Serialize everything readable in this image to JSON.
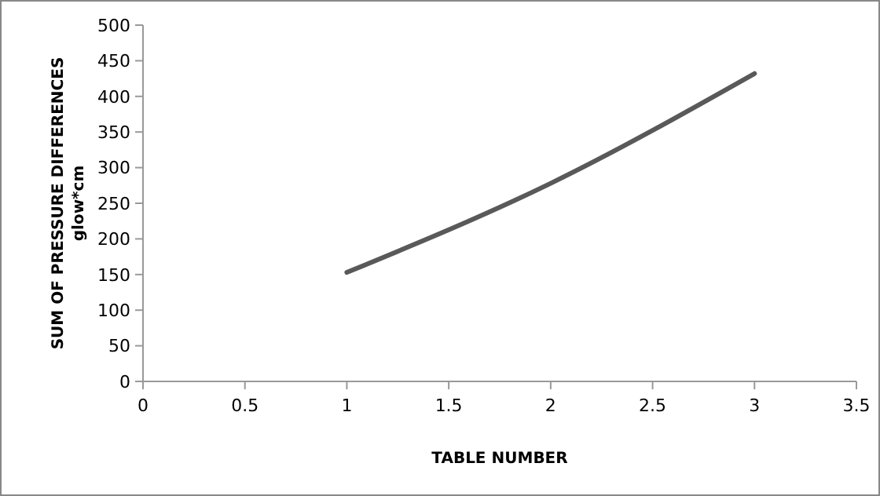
{
  "chart_data": {
    "type": "line",
    "xlabel": "TABLE NUMBER",
    "ylabel": "SUM OF PRESSURE DIFFERENCES\nglow*cm",
    "x": [
      1,
      2,
      3
    ],
    "series": [
      {
        "color": "#595959",
        "values": [
          153,
          278,
          432
        ]
      }
    ],
    "xlim": [
      0,
      3.5
    ],
    "xticks": [
      0,
      0.5,
      1,
      1.5,
      2,
      2.5,
      3,
      3.5
    ],
    "ylim": [
      0,
      500
    ],
    "yticks": [
      0,
      50,
      100,
      150,
      200,
      250,
      300,
      350,
      400,
      450,
      500
    ],
    "grid": false,
    "marker": "none",
    "line_style": "solid"
  }
}
